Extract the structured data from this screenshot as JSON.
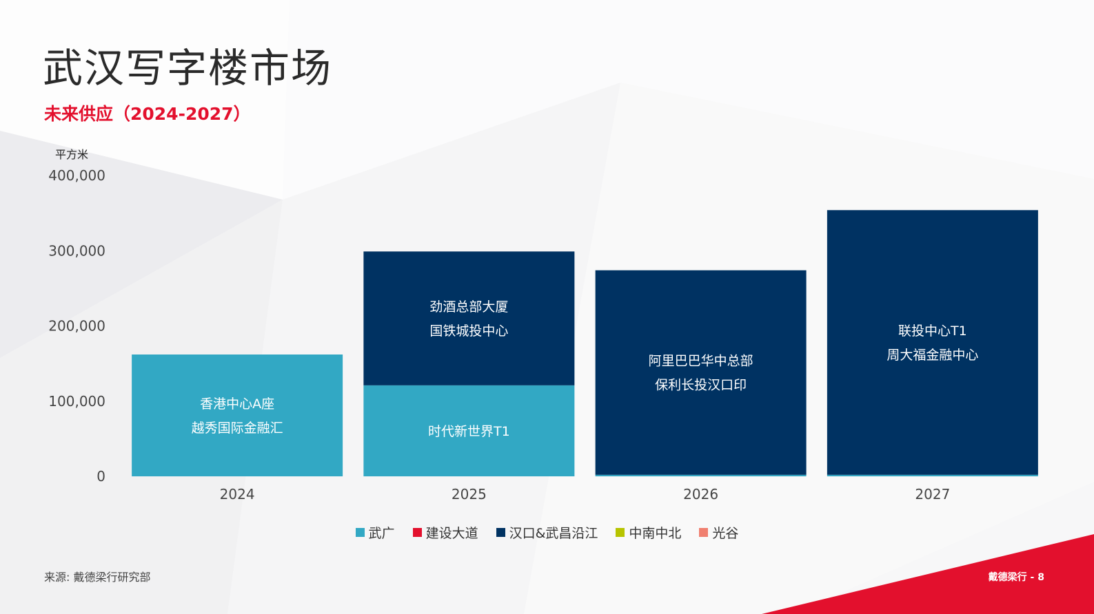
{
  "page": {
    "title": "武汉写字楼市场",
    "subtitle": "未来供应（2024-2027）",
    "unit_label": "平方米",
    "source": "来源: 戴德梁行研究部",
    "footer_brand": "戴德梁行 - 8"
  },
  "colors": {
    "accent_red": "#e3102d",
    "wuguang": "#32a8c4",
    "jianshe": "#e3102d",
    "hankou": "#003262",
    "zhongnan": "#b7c400",
    "guanggu": "#f08070"
  },
  "chart_data": {
    "type": "bar",
    "stacked": true,
    "ylim": [
      0,
      400000
    ],
    "yticks": [
      "0",
      "100,000",
      "200,000",
      "300,000",
      "400,000"
    ],
    "ytick_values": [
      0,
      100000,
      200000,
      300000,
      400000
    ],
    "categories": [
      "2024",
      "2025",
      "2026",
      "2027"
    ],
    "series": [
      {
        "name": "武广",
        "color": "#32a8c4",
        "values": [
          162000,
          121000,
          2000,
          2000
        ]
      },
      {
        "name": "建设大道",
        "color": "#e3102d",
        "values": [
          0,
          0,
          0,
          0
        ]
      },
      {
        "name": "汉口&武昌沿江",
        "color": "#003262",
        "values": [
          0,
          178000,
          272000,
          352000
        ]
      },
      {
        "name": "中南中北",
        "color": "#b7c400",
        "values": [
          0,
          0,
          0,
          0
        ]
      },
      {
        "name": "光谷",
        "color": "#f08070",
        "values": [
          0,
          0,
          0,
          0
        ]
      }
    ],
    "annotations": [
      {
        "category": "2024",
        "series": "武广",
        "lines": [
          "香港中心A座",
          "越秀国际金融汇"
        ]
      },
      {
        "category": "2025",
        "series": "武广",
        "lines": [
          "时代新世界T1"
        ]
      },
      {
        "category": "2025",
        "series": "汉口&武昌沿江",
        "lines": [
          "劲酒总部大厦",
          "国铁城投中心"
        ]
      },
      {
        "category": "2026",
        "series": "汉口&武昌沿江",
        "lines": [
          "阿里巴巴华中总部",
          "保利长投汉口印"
        ]
      },
      {
        "category": "2027",
        "series": "汉口&武昌沿江",
        "lines": [
          "联投中心T1",
          "周大福金融中心"
        ]
      }
    ],
    "legend_position": "bottom",
    "grid": false
  }
}
